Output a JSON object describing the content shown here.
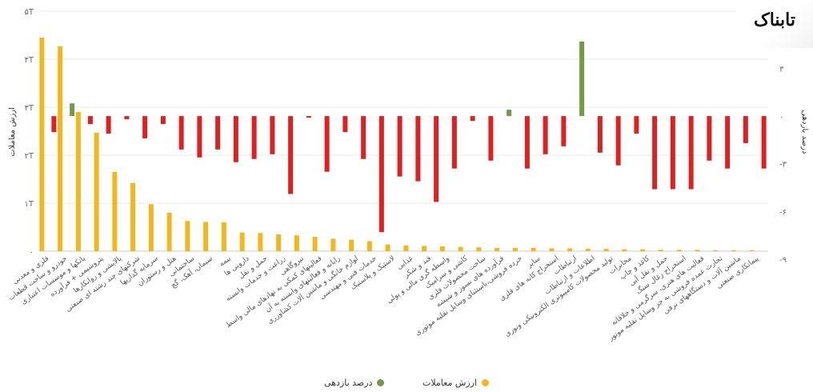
{
  "logo": {
    "text": "تابناک"
  },
  "chart_data": {
    "type": "bar",
    "categories": [
      "فلزی و معدنی",
      "خودرو و ساخت قطعات",
      "بانکها و موسسات اعتباری",
      "پتروشیمی + فرآورده",
      "پالایشی و روانکارها",
      "شرکتهای چند رشته ای صنعتی",
      "سرمایه گذاریها",
      "هتل و رستوران",
      "ساختمانی",
      "سیمان، آهک، گچ",
      "بیمه",
      "دارویی ها",
      "حمل و نقل",
      "زراعت و خدمات وابسته",
      "نیروگاهی",
      "فعالیتهای کمکی به نهادهای مالی واسط",
      "رایانه و فعالیتهای وابسته به آن",
      "لوازم خانگی و ماشین آلات کشاورزی",
      "خدمات فنی و مهندسی",
      "لاستیک و پلاستیک",
      "غذایی",
      "قند و شکر",
      "واسطه گری مالی و پولی",
      "کاشی و سرامیک",
      "ساخت محصولات فلزی",
      "فرآورده های نسوز و شیشه",
      "خرده فروشی،باستثنای وسایل نقلیه موتوری",
      "سایر",
      "استخراج کانه های فلزی",
      "ارتباطات",
      "اطلاعات و ارتباطات",
      "تولید محصولات کامپیوتری الکترونیکی ونوری",
      "مخابرات",
      "کاغذ و چاپ",
      "حمل و نقل آبی",
      "استخراج زغال سنگ",
      "فعالیت های هنری، سرگرمی و خلاقانه",
      "تجارت عمده فروشی به جز وسایل نقلیه موتور",
      "ماشین آلات و دستگاههای برقی",
      "پیمانکاری صنعتی"
    ],
    "series": [
      {
        "name": "ارزش معاملات",
        "axis": "left",
        "color": "#f2b81b",
        "values": [
          4.45,
          4.27,
          2.9,
          2.47,
          1.65,
          1.42,
          0.98,
          0.8,
          0.63,
          0.61,
          0.6,
          0.39,
          0.38,
          0.35,
          0.33,
          0.3,
          0.26,
          0.24,
          0.21,
          0.14,
          0.12,
          0.11,
          0.1,
          0.09,
          0.08,
          0.07,
          0.07,
          0.07,
          0.06,
          0.06,
          0.05,
          0.05,
          0.04,
          0.04,
          0.03,
          0.03,
          0.03,
          0.02,
          0.02,
          0.02
        ]
      },
      {
        "name": "درصد بازدهی",
        "axis": "right",
        "color_positive": "#77984a",
        "color_negative": "#e02020",
        "values": [
          -1.0,
          0.8,
          -0.5,
          -1.1,
          -0.2,
          -1.4,
          -0.5,
          -2.1,
          -2.6,
          -2.1,
          -2.9,
          -2.7,
          -2.4,
          -4.9,
          -0.1,
          -3.5,
          -1.0,
          -2.7,
          -7.3,
          -3.8,
          -4.1,
          -5.4,
          -3.3,
          -0.3,
          -2.8,
          0.4,
          -3.3,
          -2.4,
          -1.9,
          4.7,
          -2.3,
          -3.1,
          -1.1,
          -4.6,
          -4.6,
          -4.6,
          -2.8,
          -3.3,
          -1.7,
          -3.3
        ]
      }
    ],
    "axis_left": {
      "title": "ارزش معاملات",
      "ticks": [
        "۰",
        "۱T",
        "۲T",
        "۳T",
        "۴T",
        "۵T"
      ],
      "ylim": [
        0,
        5
      ]
    },
    "axis_right": {
      "title": "درصد بازدهی",
      "ticks": [
        "-۹",
        "-۶",
        "-۳",
        "۰",
        "۳"
      ],
      "ylim": [
        -8.5,
        6.6
      ]
    },
    "legend": [
      {
        "label": "درصد بازدهی",
        "color": "#77984a"
      },
      {
        "label": "ارزش معاملات",
        "color": "#f2b81b"
      }
    ],
    "grid": true
  }
}
